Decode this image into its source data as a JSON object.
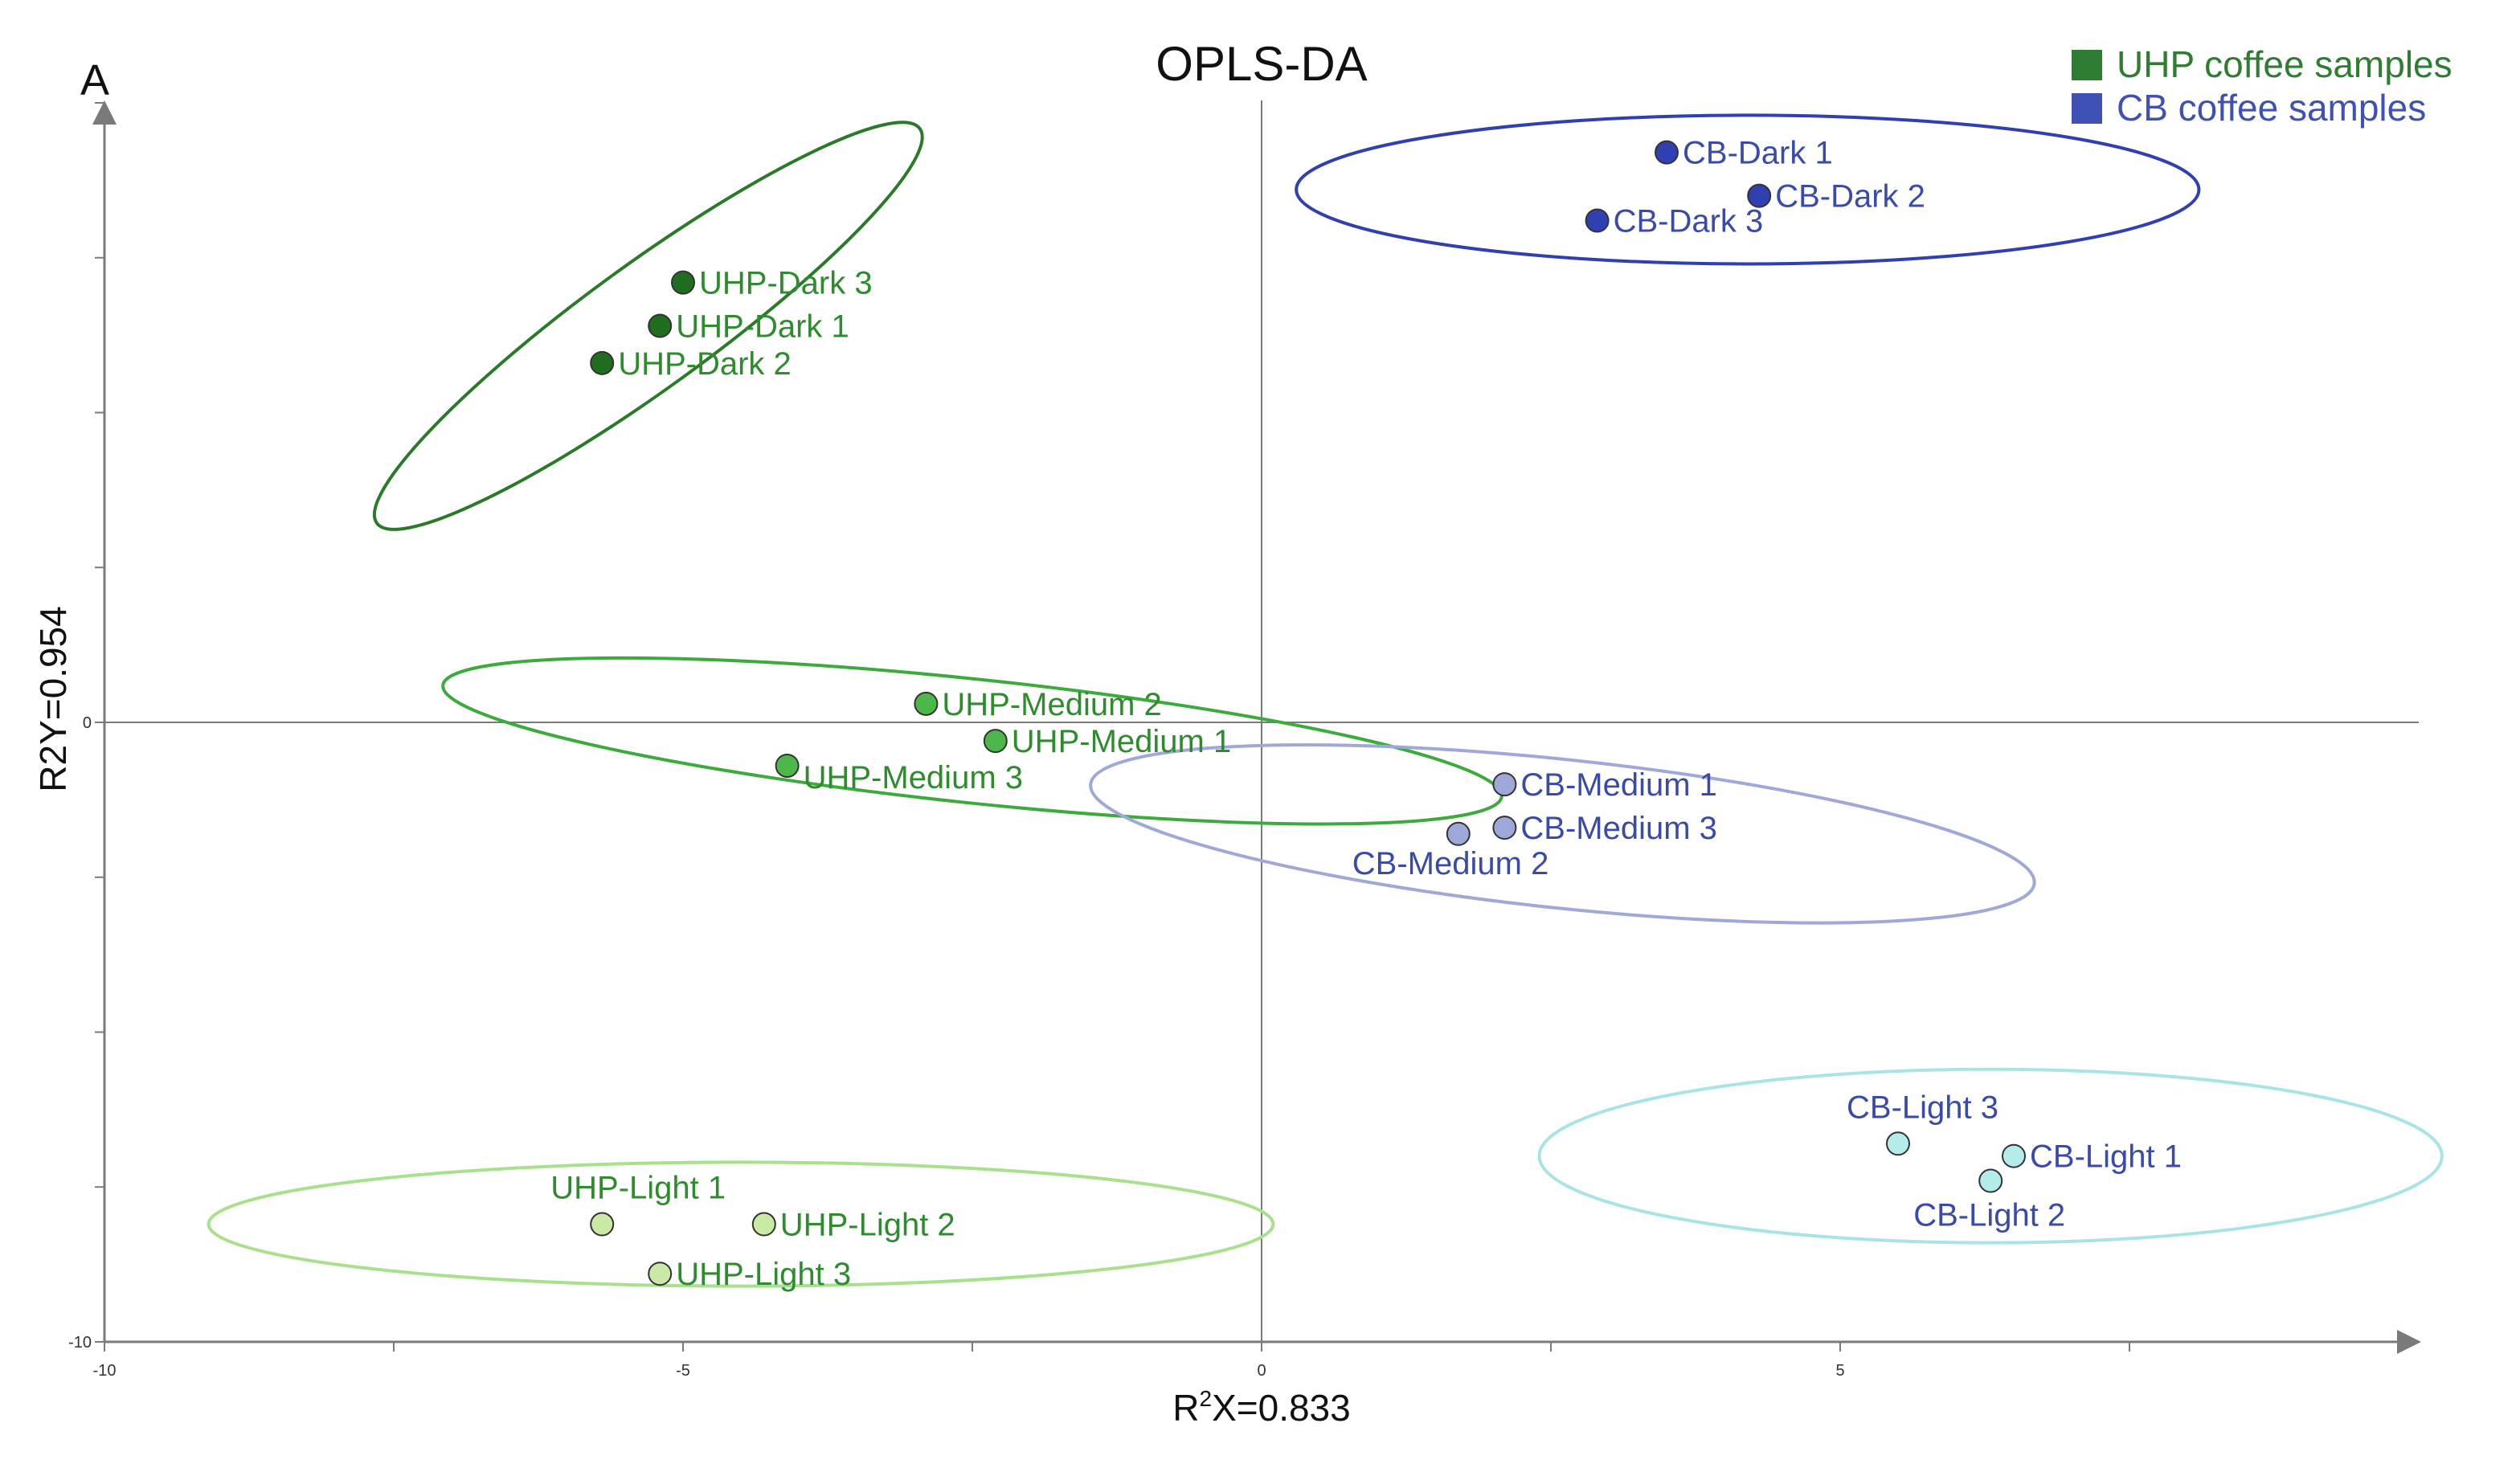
{
  "panel_letter": "A",
  "colors": {
    "axis": "#7a7a7a",
    "text": "#111111",
    "uhp_label": "#2e8b2e",
    "cb_label": "#3a4aa8"
  },
  "chart_data": {
    "type": "scatter",
    "title": "OPLS-DA",
    "xlabel_main": "R",
    "xlabel_sup": "2",
    "xlabel_rest": "X=0.833",
    "ylabel": "R2Y=0.954",
    "xlim": [
      -10,
      10
    ],
    "ylim": [
      -10,
      10
    ],
    "x_ticks": [
      -10,
      -5,
      0,
      5
    ],
    "y_ticks": [
      -10,
      0
    ],
    "legend": [
      {
        "label": "UHP coffee samples",
        "color": "#2e7d32"
      },
      {
        "label": "CB coffee samples",
        "color": "#3f51b5"
      }
    ],
    "series": [
      {
        "name": "UHP-Dark",
        "fill": "#1f6e1f",
        "label_color": "#2e8b2e",
        "points": [
          {
            "label": "UHP-Dark 3",
            "x": -5.0,
            "y": 7.1,
            "anchor": "right"
          },
          {
            "label": "UHP-Dark 1",
            "x": -5.2,
            "y": 6.4,
            "anchor": "right"
          },
          {
            "label": "UHP-Dark 2",
            "x": -5.7,
            "y": 5.8,
            "anchor": "right"
          }
        ]
      },
      {
        "name": "UHP-Medium",
        "fill": "#4cb84c",
        "label_color": "#2e8b2e",
        "points": [
          {
            "label": "UHP-Medium 2",
            "x": -2.9,
            "y": 0.3,
            "anchor": "right"
          },
          {
            "label": "UHP-Medium 1",
            "x": -2.3,
            "y": -0.3,
            "anchor": "right"
          },
          {
            "label": "UHP-Medium 3",
            "x": -4.1,
            "y": -0.7,
            "anchor": "right-below"
          }
        ]
      },
      {
        "name": "UHP-Light",
        "fill": "#c8eaa4",
        "label_color": "#2e8b2e",
        "points": [
          {
            "label": "UHP-Light 1",
            "x": -5.7,
            "y": -8.1,
            "anchor": "above"
          },
          {
            "label": "UHP-Light 2",
            "x": -4.3,
            "y": -8.1,
            "anchor": "right"
          },
          {
            "label": "UHP-Light 3",
            "x": -5.2,
            "y": -8.9,
            "anchor": "right"
          }
        ]
      },
      {
        "name": "CB-Dark",
        "fill": "#3040b0",
        "label_color": "#3a4aa8",
        "points": [
          {
            "label": "CB-Dark 1",
            "x": 3.5,
            "y": 9.2,
            "anchor": "right"
          },
          {
            "label": "CB-Dark 2",
            "x": 4.3,
            "y": 8.5,
            "anchor": "right"
          },
          {
            "label": "CB-Dark 3",
            "x": 2.9,
            "y": 8.1,
            "anchor": "right"
          }
        ]
      },
      {
        "name": "CB-Medium",
        "fill": "#9ea8d8",
        "label_color": "#3a4aa8",
        "points": [
          {
            "label": "CB-Medium 1",
            "x": 2.1,
            "y": -1.0,
            "anchor": "right"
          },
          {
            "label": "CB-Medium 3",
            "x": 2.1,
            "y": -1.7,
            "anchor": "right"
          },
          {
            "label": "CB-Medium 2",
            "x": 1.7,
            "y": -1.8,
            "anchor": "below-left"
          }
        ]
      },
      {
        "name": "CB-Light",
        "fill": "#b4ecec",
        "label_color": "#3a4aa8",
        "points": [
          {
            "label": "CB-Light 3",
            "x": 5.5,
            "y": -6.8,
            "anchor": "above"
          },
          {
            "label": "CB-Light 1",
            "x": 6.5,
            "y": -7.0,
            "anchor": "right"
          },
          {
            "label": "CB-Light 2",
            "x": 6.3,
            "y": -7.4,
            "anchor": "below"
          }
        ]
      }
    ],
    "ellipses": [
      {
        "group": "UHP-Dark",
        "cx": -5.3,
        "cy": 6.4,
        "rx": 2.9,
        "ry": 1.0,
        "angle_deg": 36,
        "color": "#2a7a2a"
      },
      {
        "group": "UHP-Medium",
        "cx": -2.5,
        "cy": -0.3,
        "rx": 4.6,
        "ry": 1.0,
        "angle_deg": -6,
        "color": "#3caa3c"
      },
      {
        "group": "UHP-Light",
        "cx": -4.5,
        "cy": -8.1,
        "rx": 4.6,
        "ry": 1.0,
        "angle_deg": 0,
        "color": "#a8e08c"
      },
      {
        "group": "CB-Dark",
        "cx": 4.2,
        "cy": 8.6,
        "rx": 3.9,
        "ry": 1.2,
        "angle_deg": 0,
        "color": "#3040b0"
      },
      {
        "group": "CB-Medium",
        "cx": 2.6,
        "cy": -1.8,
        "rx": 4.1,
        "ry": 1.2,
        "angle_deg": -6,
        "color": "#a0a8d8"
      },
      {
        "group": "CB-Light",
        "cx": 6.3,
        "cy": -7.0,
        "rx": 3.9,
        "ry": 1.4,
        "angle_deg": 0,
        "color": "#a8e4e4"
      }
    ]
  }
}
